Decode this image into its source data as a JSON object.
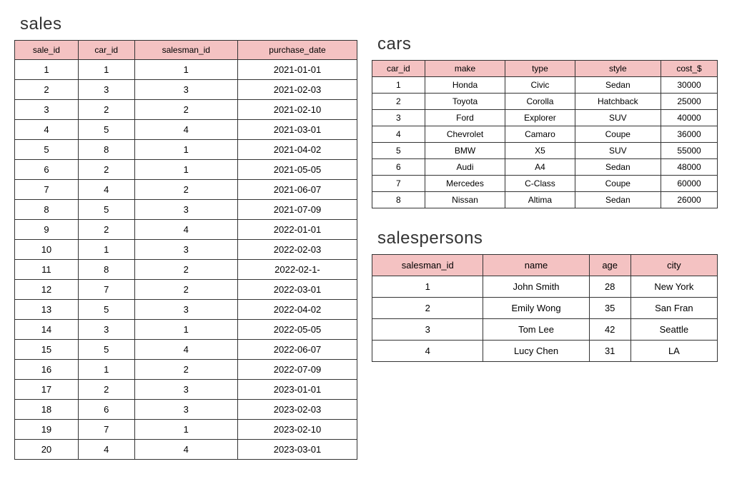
{
  "sales_table": {
    "title": "sales",
    "header_bg": "#f4c2c2",
    "border_color": "#333333",
    "columns": [
      "sale_id",
      "car_id",
      "salesman_id",
      "purchase_date"
    ],
    "rows": [
      [
        "1",
        "1",
        "1",
        "2021-01-01"
      ],
      [
        "2",
        "3",
        "3",
        "2021-02-03"
      ],
      [
        "3",
        "2",
        "2",
        "2021-02-10"
      ],
      [
        "4",
        "5",
        "4",
        "2021-03-01"
      ],
      [
        "5",
        "8",
        "1",
        "2021-04-02"
      ],
      [
        "6",
        "2",
        "1",
        "2021-05-05"
      ],
      [
        "7",
        "4",
        "2",
        "2021-06-07"
      ],
      [
        "8",
        "5",
        "3",
        "2021-07-09"
      ],
      [
        "9",
        "2",
        "4",
        "2022-01-01"
      ],
      [
        "10",
        "1",
        "3",
        "2022-02-03"
      ],
      [
        "11",
        "8",
        "2",
        "2022-02-1-"
      ],
      [
        "12",
        "7",
        "2",
        "2022-03-01"
      ],
      [
        "13",
        "5",
        "3",
        "2022-04-02"
      ],
      [
        "14",
        "3",
        "1",
        "2022-05-05"
      ],
      [
        "15",
        "5",
        "4",
        "2022-06-07"
      ],
      [
        "16",
        "1",
        "2",
        "2022-07-09"
      ],
      [
        "17",
        "2",
        "3",
        "2023-01-01"
      ],
      [
        "18",
        "6",
        "3",
        "2023-02-03"
      ],
      [
        "19",
        "7",
        "1",
        "2023-02-10"
      ],
      [
        "20",
        "4",
        "4",
        "2023-03-01"
      ]
    ]
  },
  "cars_table": {
    "title": "cars",
    "header_bg": "#f4c2c2",
    "border_color": "#333333",
    "columns": [
      "car_id",
      "make",
      "type",
      "style",
      "cost_$"
    ],
    "rows": [
      [
        "1",
        "Honda",
        "Civic",
        "Sedan",
        "30000"
      ],
      [
        "2",
        "Toyota",
        "Corolla",
        "Hatchback",
        "25000"
      ],
      [
        "3",
        "Ford",
        "Explorer",
        "SUV",
        "40000"
      ],
      [
        "4",
        "Chevrolet",
        "Camaro",
        "Coupe",
        "36000"
      ],
      [
        "5",
        "BMW",
        "X5",
        "SUV",
        "55000"
      ],
      [
        "6",
        "Audi",
        "A4",
        "Sedan",
        "48000"
      ],
      [
        "7",
        "Mercedes",
        "C-Class",
        "Coupe",
        "60000"
      ],
      [
        "8",
        "Nissan",
        "Altima",
        "Sedan",
        "26000"
      ]
    ]
  },
  "salespersons_table": {
    "title": "salespersons",
    "header_bg": "#f4c2c2",
    "border_color": "#333333",
    "columns": [
      "salesman_id",
      "name",
      "age",
      "city"
    ],
    "rows": [
      [
        "1",
        "John Smith",
        "28",
        "New York"
      ],
      [
        "2",
        "Emily Wong",
        "35",
        "San Fran"
      ],
      [
        "3",
        "Tom Lee",
        "42",
        "Seattle"
      ],
      [
        "4",
        "Lucy Chen",
        "31",
        "LA"
      ]
    ]
  }
}
